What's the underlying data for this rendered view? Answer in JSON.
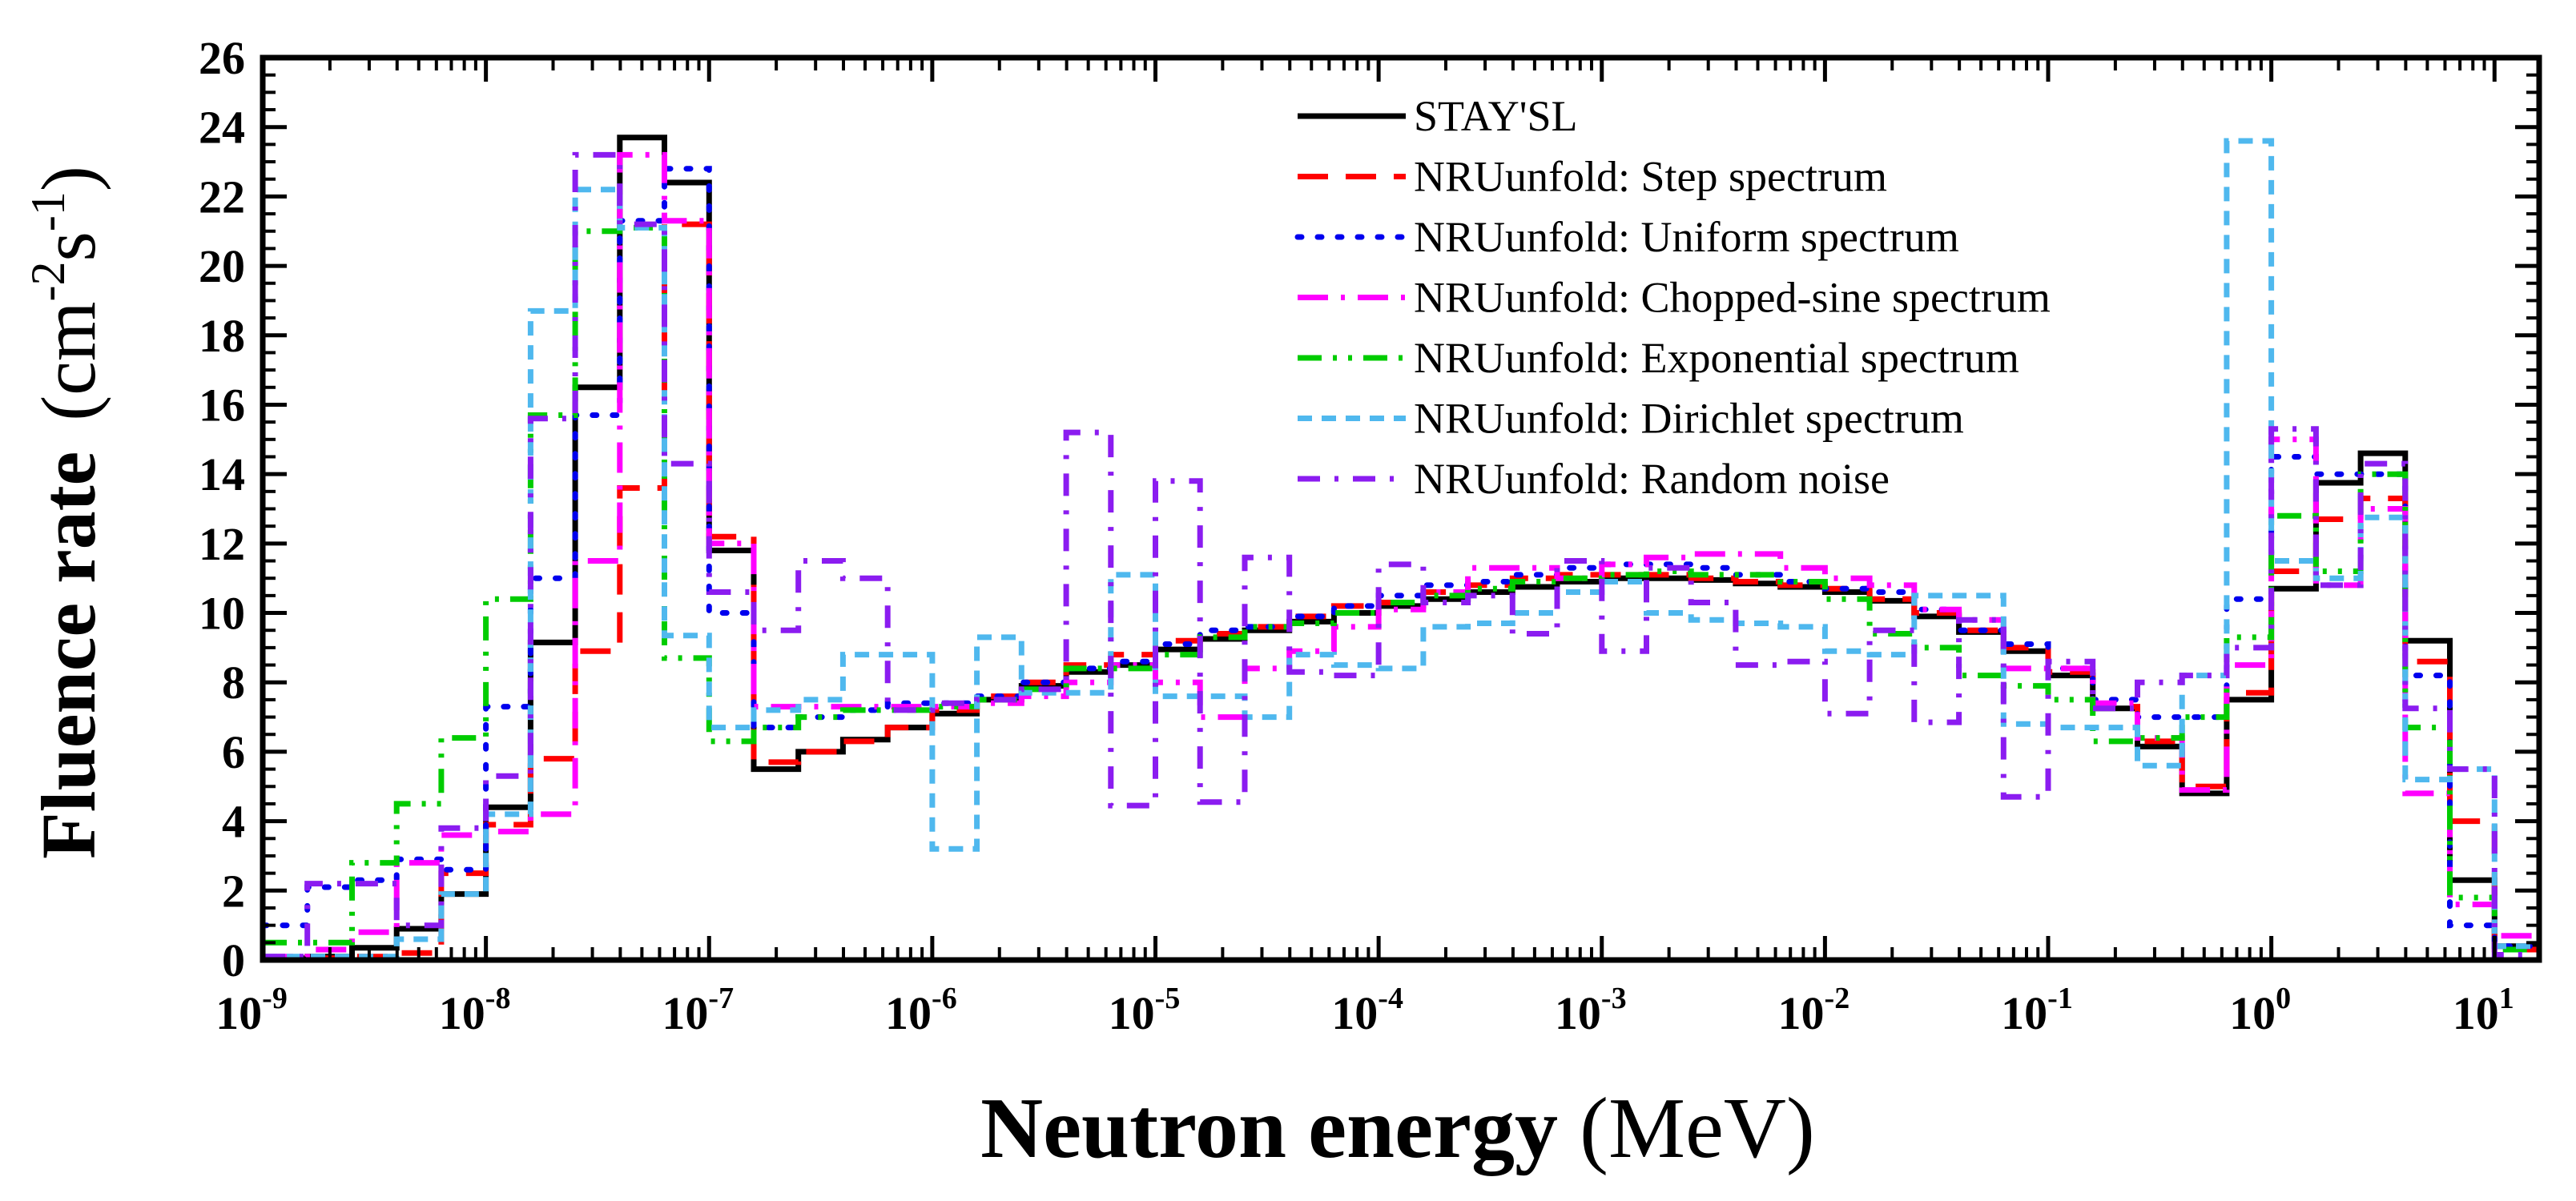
{
  "chart_data": {
    "type": "line",
    "step": true,
    "xscale": "log",
    "xlim": [
      1e-09,
      15.85
    ],
    "ylim": [
      0,
      26
    ],
    "grid": false,
    "legend_position": "top-center",
    "xlabel_bold": "Neutron energy",
    "xlabel_unit": "(MeV)",
    "ylabel_bold": "Fluence rate",
    "ylabel_unit_parts": [
      "(cm",
      "-2",
      "s",
      "-1",
      ")"
    ],
    "yticks": [
      "0",
      "2",
      "4",
      "6",
      "8",
      "10",
      "12",
      "14",
      "16",
      "18",
      "20",
      "22",
      "24",
      "26"
    ],
    "xticks": [
      {
        "base": "10",
        "exp": "-9"
      },
      {
        "base": "10",
        "exp": "-8"
      },
      {
        "base": "10",
        "exp": "-7"
      },
      {
        "base": "10",
        "exp": "-6"
      },
      {
        "base": "10",
        "exp": "-5"
      },
      {
        "base": "10",
        "exp": "-4"
      },
      {
        "base": "10",
        "exp": "-3"
      },
      {
        "base": "10",
        "exp": "-2"
      },
      {
        "base": "10",
        "exp": "-1"
      },
      {
        "base": "10",
        "exp": "0"
      },
      {
        "base": "10",
        "exp": "1"
      }
    ],
    "bins_per_decade": 5,
    "first_bin_edge_MeV": 1e-09,
    "series": [
      {
        "name": "STAY'SL",
        "color": "#000000",
        "style": "solid",
        "values": [
          0.05,
          0.1,
          0.35,
          0.9,
          1.9,
          4.4,
          9.15,
          16.5,
          23.7,
          22.4,
          11.8,
          5.5,
          6.0,
          6.35,
          6.7,
          7.1,
          7.5,
          7.9,
          8.3,
          8.5,
          8.95,
          9.25,
          9.5,
          9.75,
          10.0,
          10.2,
          10.4,
          10.6,
          10.75,
          10.9,
          11.0,
          11.0,
          10.95,
          10.85,
          10.75,
          10.6,
          10.35,
          9.9,
          9.45,
          8.9,
          8.2,
          7.25,
          6.15,
          4.8,
          7.5,
          10.7,
          13.75,
          14.6,
          9.2,
          2.3,
          0.4
        ]
      },
      {
        "name": "NRUunfold: Step spectrum",
        "color": "#ff0000",
        "style": "dash",
        "values": [
          0.05,
          0.05,
          0.1,
          0.2,
          2.5,
          3.9,
          5.8,
          8.9,
          13.6,
          21.2,
          12.2,
          5.7,
          6.0,
          6.3,
          6.7,
          7.2,
          7.6,
          8.0,
          8.5,
          8.8,
          9.2,
          9.4,
          9.6,
          9.9,
          10.2,
          10.3,
          10.6,
          10.8,
          11.0,
          11.1,
          11.1,
          11.1,
          11.0,
          10.9,
          10.8,
          10.7,
          10.4,
          10.0,
          9.5,
          9.0,
          8.3,
          7.3,
          6.3,
          5.0,
          7.7,
          11.2,
          12.7,
          13.3,
          8.6,
          4.0,
          0.3
        ]
      },
      {
        "name": "NRUunfold: Uniform spectrum",
        "color": "#0000ee",
        "style": "dot",
        "values": [
          1.0,
          2.1,
          2.3,
          2.9,
          2.6,
          7.3,
          11.0,
          15.7,
          21.3,
          22.8,
          10.0,
          6.7,
          7.0,
          7.2,
          7.4,
          7.4,
          7.6,
          8.0,
          8.4,
          8.6,
          9.1,
          9.5,
          9.6,
          9.9,
          10.2,
          10.5,
          10.8,
          10.9,
          11.1,
          11.3,
          11.4,
          11.4,
          11.3,
          11.1,
          10.9,
          10.7,
          10.6,
          10.1,
          9.5,
          9.1,
          8.4,
          7.5,
          7.0,
          7.0,
          10.4,
          14.5,
          14.0,
          14.0,
          8.2,
          1.0,
          0.4
        ]
      },
      {
        "name": "NRUunfold: Chopped-sine spectrum",
        "color": "#ff00ff",
        "style": "dashdot",
        "values": [
          0.1,
          0.3,
          0.8,
          2.8,
          3.6,
          3.7,
          4.2,
          11.5,
          23.2,
          21.3,
          12.0,
          7.3,
          7.3,
          7.3,
          7.3,
          7.3,
          7.4,
          7.6,
          8.0,
          8.5,
          8.0,
          7.0,
          8.4,
          8.9,
          9.6,
          10.1,
          10.6,
          11.3,
          11.3,
          11.0,
          11.4,
          11.6,
          11.7,
          11.7,
          11.3,
          11.0,
          10.8,
          10.1,
          9.8,
          8.4,
          8.4,
          7.4,
          6.4,
          4.9,
          8.5,
          15.0,
          10.8,
          13.0,
          4.8,
          1.6,
          0.7
        ]
      },
      {
        "name": "NRUunfold: Exponential spectrum",
        "color": "#00cc00",
        "style": "dashdotdot",
        "values": [
          0.5,
          0.5,
          2.8,
          4.5,
          6.4,
          10.4,
          15.7,
          21.0,
          21.1,
          8.7,
          6.3,
          6.7,
          7.0,
          7.2,
          7.2,
          7.3,
          7.5,
          7.8,
          8.4,
          8.4,
          8.8,
          9.3,
          9.6,
          9.7,
          10.0,
          10.3,
          10.5,
          10.7,
          10.9,
          11.0,
          11.1,
          11.2,
          11.1,
          11.1,
          10.9,
          10.4,
          9.4,
          9.0,
          8.2,
          7.9,
          7.5,
          6.3,
          6.4,
          7.0,
          9.3,
          12.8,
          11.2,
          14.0,
          6.7,
          1.8,
          0.3
        ]
      },
      {
        "name": "NRUunfold: Dirichlet spectrum",
        "color": "#4fb8ee",
        "style": "shortdash",
        "values": [
          0.1,
          0.1,
          0.1,
          0.6,
          1.9,
          4.2,
          18.7,
          22.2,
          21.1,
          9.35,
          6.7,
          7.2,
          7.5,
          8.8,
          8.8,
          3.2,
          9.3,
          7.7,
          7.7,
          11.1,
          7.6,
          7.6,
          7.0,
          8.8,
          8.5,
          8.4,
          9.6,
          9.7,
          10.0,
          10.6,
          10.9,
          10.0,
          9.8,
          9.7,
          9.6,
          8.9,
          8.8,
          10.5,
          10.5,
          6.8,
          6.7,
          6.7,
          5.6,
          8.2,
          23.6,
          11.5,
          11.0,
          12.75,
          5.2,
          5.5,
          0.4
        ]
      },
      {
        "name": "NRUunfold: Random noise",
        "color": "#8b1cf0",
        "style": "dashdot2",
        "values": [
          0.1,
          2.2,
          2.2,
          1.0,
          3.8,
          5.3,
          15.6,
          23.2,
          21.2,
          14.3,
          10.6,
          9.5,
          11.5,
          11.0,
          7.2,
          7.4,
          7.5,
          7.8,
          15.2,
          4.45,
          13.8,
          4.55,
          11.6,
          8.3,
          8.2,
          11.4,
          10.3,
          10.5,
          9.4,
          11.5,
          8.9,
          11.3,
          10.3,
          8.5,
          8.6,
          7.1,
          9.5,
          6.85,
          9.8,
          4.7,
          8.6,
          7.25,
          8.0,
          8.2,
          9.0,
          15.3,
          10.8,
          14.3,
          7.25,
          5.5,
          0.15
        ]
      }
    ]
  }
}
